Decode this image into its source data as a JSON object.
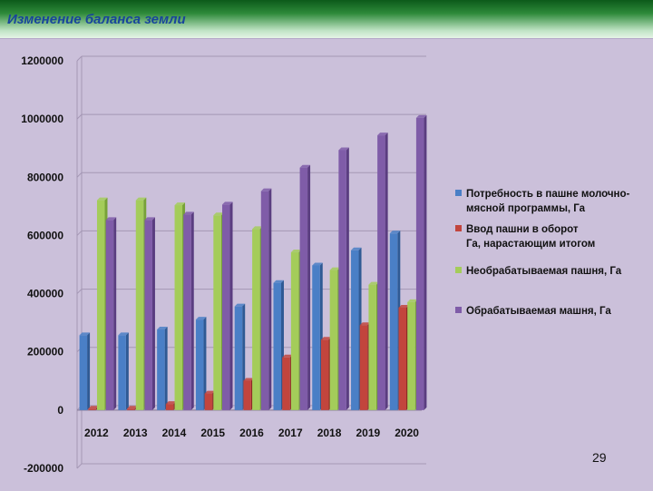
{
  "slide": {
    "title": "Изменение баланса земли",
    "page_number": "29"
  },
  "colors": {
    "series": [
      "#4a7fc6",
      "#c2453d",
      "#a4cc5a",
      "#7f5ca8"
    ],
    "series_dark": [
      "#2f5a94",
      "#8d2a24",
      "#77a237",
      "#5a3d80"
    ],
    "header": "#1d6b2a",
    "panel": "#cbc0da"
  },
  "chart_data": {
    "type": "bar",
    "title": "Изменение баланса земли",
    "categories": [
      "2012",
      "2013",
      "2014",
      "2015",
      "2016",
      "2017",
      "2018",
      "2019",
      "2020"
    ],
    "ylim": [
      -200000,
      1200000
    ],
    "yticks": [
      -200000,
      0,
      200000,
      400000,
      600000,
      800000,
      1000000,
      1200000
    ],
    "ytick_labels": [
      "-200000",
      "0",
      "200000",
      "400000",
      "600000",
      "800000",
      "1000000",
      "1200000"
    ],
    "grid": true,
    "legend_position": "right",
    "series": [
      {
        "name": "Потребность в пашне молочно-мясной программы, Га",
        "legend_lines": [
          "Потребность в пашне молочно-",
          "мясной программы, Га"
        ],
        "values": [
          257000,
          257000,
          277000,
          311000,
          356000,
          437000,
          497000,
          549000,
          607000
        ]
      },
      {
        "name": "Ввод пашни в оборот Га, нарастающим итогом",
        "legend_lines": [
          "Ввод пашни в оборот",
          "Га, нарастающим  итогом"
        ],
        "values": [
          5000,
          5000,
          21000,
          57000,
          101000,
          181000,
          242000,
          292000,
          352000
        ]
      },
      {
        "name": "Необрабатываемая пашня, Га",
        "legend_lines": [
          "Необрабатываемая пашня, Га"
        ],
        "values": [
          721000,
          721000,
          704000,
          669000,
          622000,
          542000,
          481000,
          431000,
          371000
        ]
      },
      {
        "name": "Обрабатываемая машня, Га",
        "legend_lines": [
          "Обрабатываемая машня, Га"
        ],
        "values": [
          653000,
          653000,
          672000,
          706000,
          752000,
          833000,
          893000,
          944000,
          1004000
        ]
      }
    ]
  }
}
